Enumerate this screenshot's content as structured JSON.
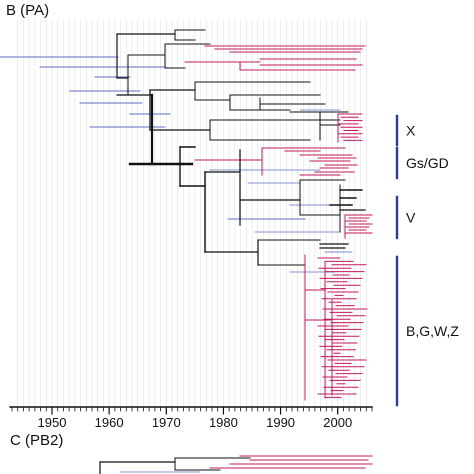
{
  "panel_b": {
    "label": "B (PA)",
    "axis": {
      "ticks": [
        "1950",
        "1960",
        "1970",
        "1980",
        "1990",
        "2000"
      ],
      "range": [
        1943,
        2006
      ]
    },
    "clades": [
      {
        "label": "X",
        "y_from": 116,
        "y_to": 145
      },
      {
        "label": "Gs/GD",
        "y_from": 148,
        "y_to": 178
      },
      {
        "label": "V",
        "y_from": 197,
        "y_to": 238
      },
      {
        "label": "B,G,W,Z",
        "y_from": 257,
        "y_to": 405
      }
    ]
  },
  "panel_c": {
    "label": "C (PB2)"
  },
  "colors": {
    "backbone": "#111111",
    "branch_red": "#c2185b",
    "interval_blue": "#5b6cc0",
    "clade_bar": "#2b3b8f",
    "grid": "#e2e2e2"
  }
}
